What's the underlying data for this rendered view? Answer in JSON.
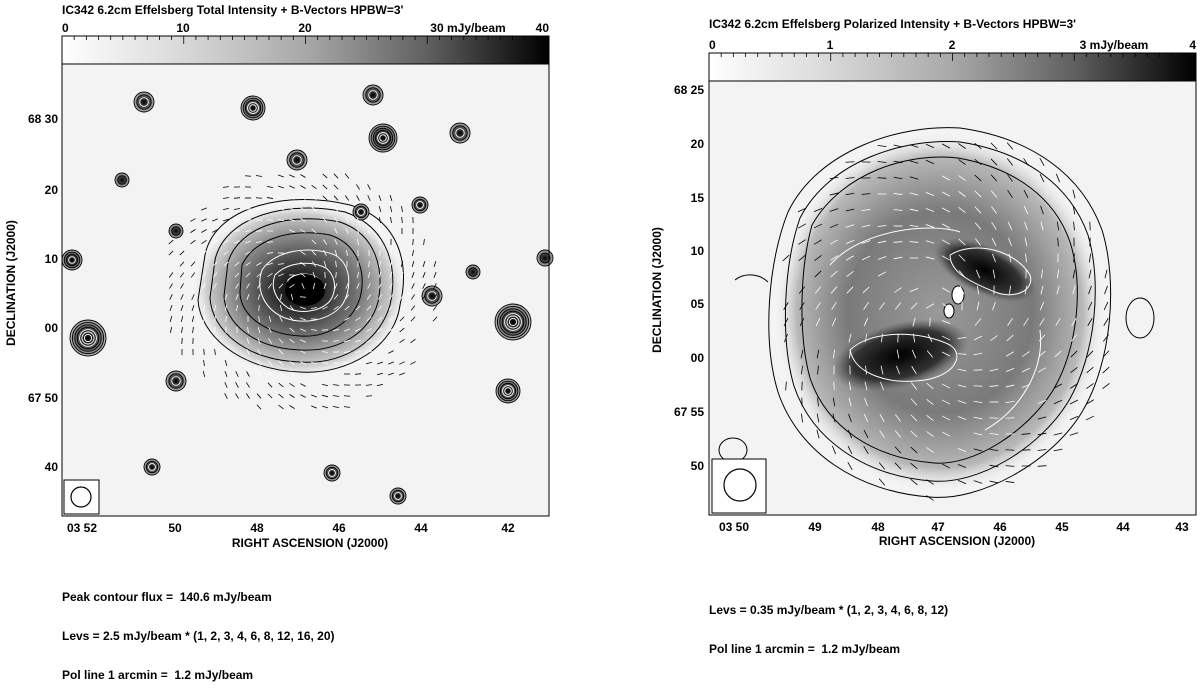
{
  "panels": [
    {
      "id": "left",
      "title": "IC342   6.2cm   Effelsberg   Total Intensity + B-Vectors   HPBW=3'",
      "colorbar": {
        "ticks": [
          "0",
          "10",
          "20",
          "30 mJy/beam",
          "40"
        ]
      },
      "x_axis": {
        "label": "RIGHT ASCENSION (J2000)",
        "ticks": [
          "03 52",
          "50",
          "48",
          "46",
          "44",
          "42"
        ]
      },
      "y_axis": {
        "label": "DECLINATION (J2000)",
        "ticks": [
          "68 30",
          "20",
          "10",
          "00",
          "67 50",
          "40"
        ]
      },
      "footer": [
        "Peak contour flux =  140.6 mJy/beam",
        "Levs = 2.5 mJy/beam * (1, 2, 3, 4, 6, 8, 12, 16, 20)",
        "Pol line 1 arcmin =  1.2 mJy/beam"
      ]
    },
    {
      "id": "right",
      "title": "IC342   6.2cm   Effelsberg   Polarized Intensity + B-Vectors   HPBW=3'",
      "colorbar": {
        "ticks": [
          "0",
          "1",
          "2",
          "3 mJy/beam",
          "4"
        ]
      },
      "x_axis": {
        "label": "RIGHT ASCENSION (J2000)",
        "ticks": [
          "03 50",
          "49",
          "48",
          "47",
          "46",
          "45",
          "44",
          "43"
        ]
      },
      "y_axis": {
        "label": "DECLINATION (J2000)",
        "ticks": [
          "68 25",
          "20",
          "15",
          "10",
          "05",
          "00",
          "67 55",
          "50"
        ]
      },
      "footer": [
        "Levs = 0.35 mJy/beam * (1, 2, 3, 4, 6, 8, 12)",
        "Pol line 1 arcmin =  1.2 mJy/beam"
      ]
    }
  ]
}
